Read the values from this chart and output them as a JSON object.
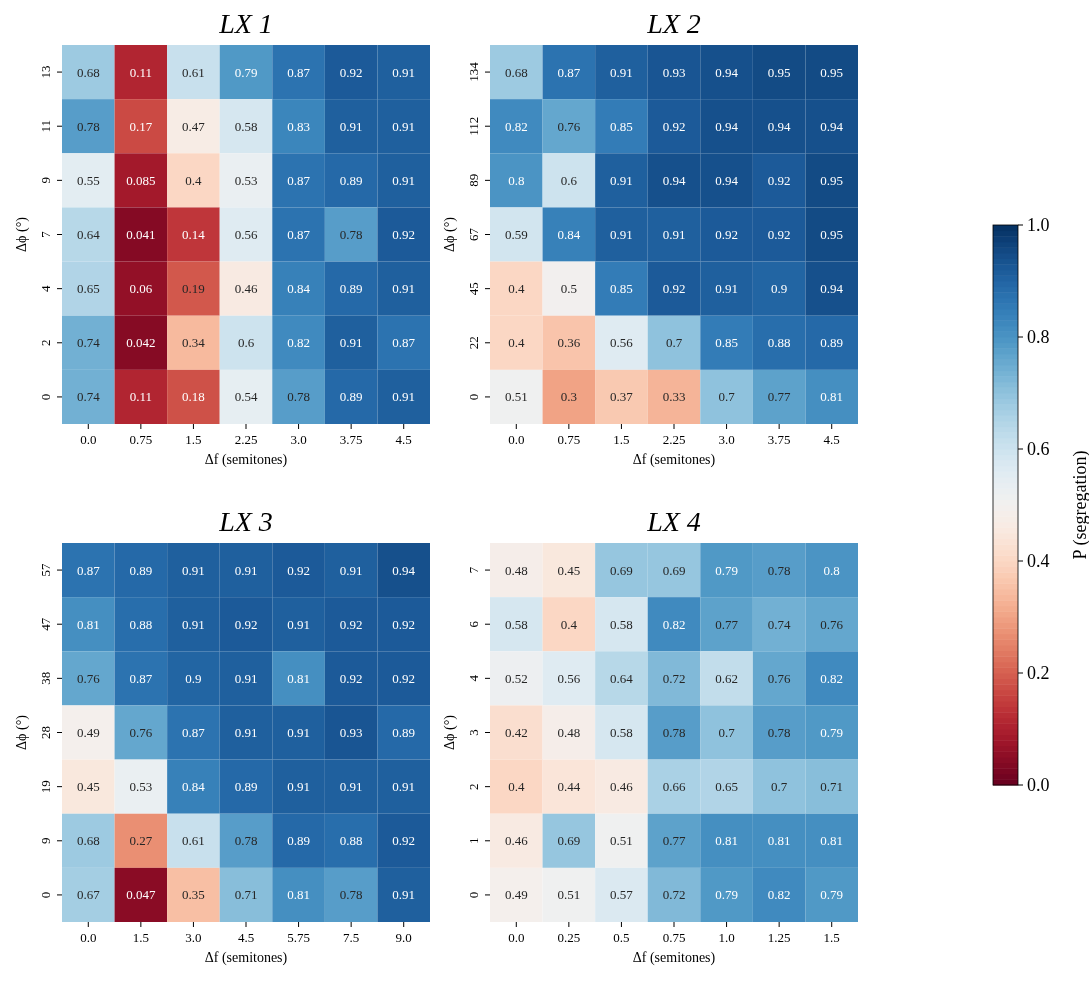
{
  "chart_data": [
    {
      "type": "heatmap",
      "title": "LX 1",
      "xlabel": "Δf (semitones)",
      "ylabel": "Δϕ (°)",
      "data_labels": true,
      "categories": [
        "0.0",
        "0.75",
        "1.5",
        "2.25",
        "3.0",
        "3.75",
        "4.5"
      ],
      "y_categories": [
        "13",
        "11",
        "9",
        "7",
        "4",
        "2",
        "0"
      ],
      "cells": [
        [
          0.68,
          0.11,
          0.61,
          0.79,
          0.87,
          0.92,
          0.91
        ],
        [
          0.78,
          0.17,
          0.47,
          0.58,
          0.83,
          0.91,
          0.91
        ],
        [
          0.55,
          0.085,
          0.4,
          0.53,
          0.87,
          0.89,
          0.91
        ],
        [
          0.64,
          0.041,
          0.14,
          0.56,
          0.87,
          0.78,
          0.92
        ],
        [
          0.65,
          0.06,
          0.19,
          0.46,
          0.84,
          0.89,
          0.91
        ],
        [
          0.74,
          0.042,
          0.34,
          0.6,
          0.82,
          0.91,
          0.87
        ],
        [
          0.74,
          0.11,
          0.18,
          0.54,
          0.78,
          0.89,
          0.91
        ]
      ]
    },
    {
      "type": "heatmap",
      "title": "LX 2",
      "xlabel": "Δf (semitones)",
      "ylabel": "Δϕ (°)",
      "data_labels": true,
      "clim": [
        0,
        1
      ],
      "clabel": "P (segregation)",
      "cticks": [
        {
          "value": 0,
          "label": "0.0"
        },
        {
          "value": 0.2,
          "label": "0.2"
        },
        {
          "value": 0.4,
          "label": "0.4"
        },
        {
          "value": 0.6,
          "label": "0.6"
        },
        {
          "value": 0.8,
          "label": "0.8"
        },
        {
          "value": 1,
          "label": "1.0"
        }
      ],
      "categories": [
        "0.0",
        "0.75",
        "1.5",
        "2.25",
        "3.0",
        "3.75",
        "4.5"
      ],
      "y_categories": [
        "134",
        "112",
        "89",
        "67",
        "45",
        "22",
        "0"
      ],
      "cells": [
        [
          0.68,
          0.87,
          0.91,
          0.93,
          0.94,
          0.95,
          0.95
        ],
        [
          0.82,
          0.76,
          0.85,
          0.92,
          0.94,
          0.94,
          0.94
        ],
        [
          0.8,
          0.6,
          0.91,
          0.94,
          0.94,
          0.92,
          0.95
        ],
        [
          0.59,
          0.84,
          0.91,
          0.91,
          0.92,
          0.92,
          0.95
        ],
        [
          0.4,
          0.5,
          0.85,
          0.92,
          0.91,
          0.9,
          0.94
        ],
        [
          0.4,
          0.36,
          0.56,
          0.7,
          0.85,
          0.88,
          0.89
        ],
        [
          0.51,
          0.3,
          0.37,
          0.33,
          0.7,
          0.77,
          0.81
        ]
      ]
    },
    {
      "type": "heatmap",
      "title": "LX 3",
      "xlabel": "Δf (semitones)",
      "ylabel": "Δϕ (°)",
      "data_labels": true,
      "categories": [
        "0.0",
        "1.5",
        "3.0",
        "4.5",
        "5.75",
        "7.5",
        "9.0"
      ],
      "y_categories": [
        "57",
        "47",
        "38",
        "28",
        "19",
        "9",
        "0"
      ],
      "cells": [
        [
          0.87,
          0.89,
          0.91,
          0.91,
          0.92,
          0.91,
          0.94
        ],
        [
          0.81,
          0.88,
          0.91,
          0.92,
          0.91,
          0.92,
          0.92
        ],
        [
          0.76,
          0.87,
          0.9,
          0.91,
          0.81,
          0.92,
          0.92
        ],
        [
          0.49,
          0.76,
          0.87,
          0.91,
          0.91,
          0.93,
          0.89
        ],
        [
          0.45,
          0.53,
          0.84,
          0.89,
          0.91,
          0.91,
          0.91
        ],
        [
          0.68,
          0.27,
          0.61,
          0.78,
          0.89,
          0.88,
          0.92
        ],
        [
          0.67,
          0.047,
          0.35,
          0.71,
          0.81,
          0.78,
          0.91
        ]
      ]
    },
    {
      "type": "heatmap",
      "title": "LX 4",
      "xlabel": "Δf (semitones)",
      "ylabel": "Δϕ (°)",
      "data_labels": true,
      "categories": [
        "0.0",
        "0.25",
        "0.5",
        "0.75",
        "1.0",
        "1.25",
        "1.5"
      ],
      "y_categories": [
        "7",
        "6",
        "4",
        "3",
        "2",
        "1",
        "0"
      ],
      "cells": [
        [
          0.48,
          0.45,
          0.69,
          0.69,
          0.79,
          0.78,
          0.8
        ],
        [
          0.58,
          0.4,
          0.58,
          0.82,
          0.77,
          0.74,
          0.76
        ],
        [
          0.52,
          0.56,
          0.64,
          0.72,
          0.62,
          0.76,
          0.82
        ],
        [
          0.42,
          0.48,
          0.58,
          0.78,
          0.7,
          0.78,
          0.79
        ],
        [
          0.4,
          0.44,
          0.46,
          0.66,
          0.65,
          0.7,
          0.71
        ],
        [
          0.46,
          0.69,
          0.51,
          0.77,
          0.81,
          0.81,
          0.81
        ],
        [
          0.49,
          0.51,
          0.57,
          0.72,
          0.79,
          0.82,
          0.79
        ]
      ]
    }
  ]
}
